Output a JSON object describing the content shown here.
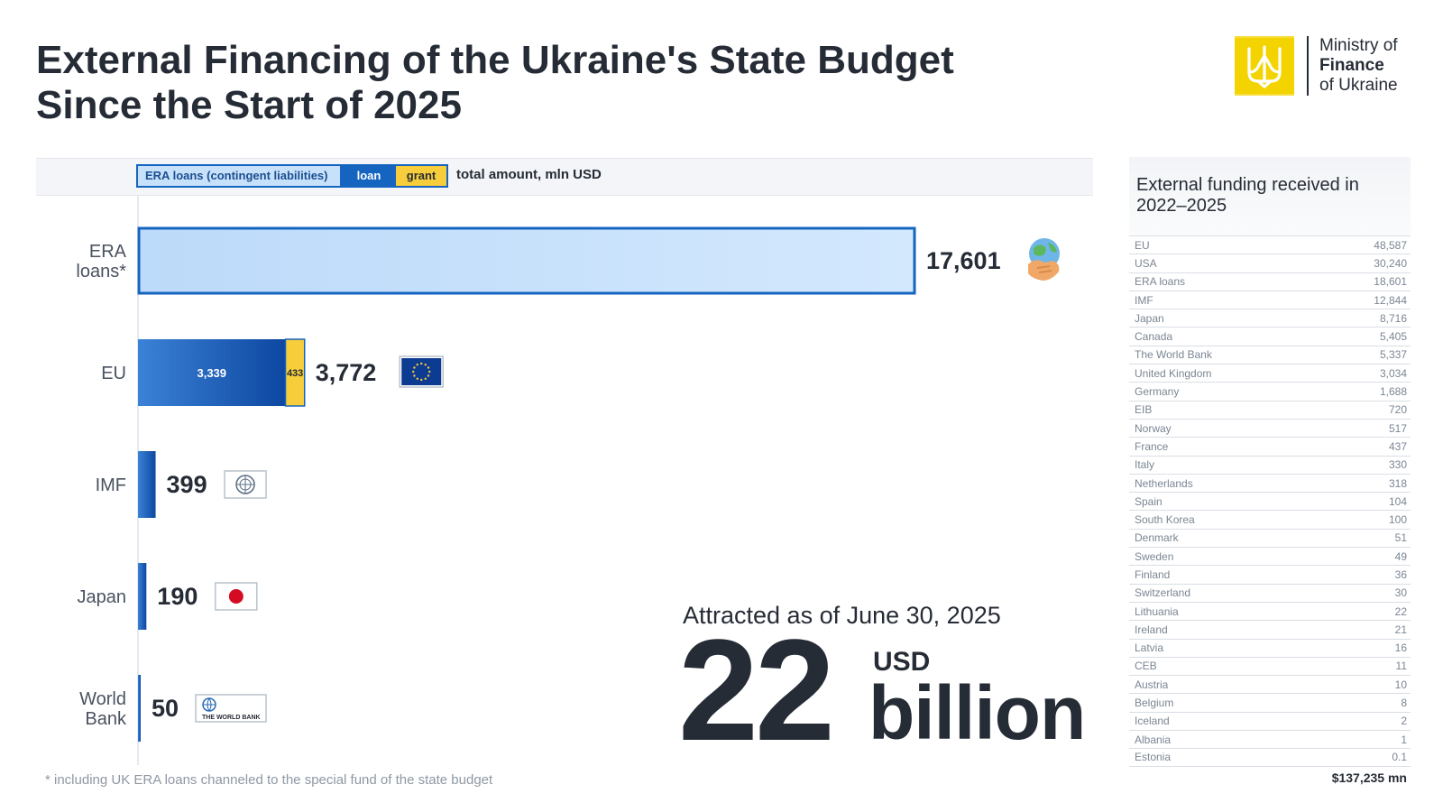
{
  "header": {
    "title_line1": "External Financing of the Ukraine's State Budget",
    "title_line2": "Since the Start of 2025"
  },
  "logo": {
    "line1": "Ministry of",
    "line2": "Finance",
    "line3": "of Ukraine",
    "icon": "trident-icon",
    "color": "#f4d400"
  },
  "legend": {
    "era": "ERA loans (contingent liabilities)",
    "loan": "loan",
    "grant": "grant",
    "total": "total amount, mln USD"
  },
  "colors": {
    "era_fill": "#c8e1fb",
    "loan": "#1565c0",
    "grant": "#f7cd3b",
    "text": "#262c36"
  },
  "chart_data": {
    "type": "bar",
    "orientation": "horizontal",
    "stacked": true,
    "unit": "mln USD",
    "xlim": [
      0,
      17601
    ],
    "categories": [
      "ERA loans*",
      "EU",
      "IMF",
      "Japan",
      "World Bank"
    ],
    "series": [
      {
        "name": "ERA loans (contingent liabilities)",
        "values": [
          17601,
          0,
          0,
          0,
          0
        ]
      },
      {
        "name": "loan",
        "values": [
          0,
          3339,
          399,
          190,
          50
        ]
      },
      {
        "name": "grant",
        "values": [
          0,
          433,
          0,
          0,
          0
        ]
      }
    ],
    "totals": [
      "17,601",
      "3,772",
      "399",
      "190",
      "50"
    ],
    "segment_labels": [
      "",
      "3,339",
      "",
      "",
      ""
    ],
    "grant_labels": [
      "",
      "433",
      "",
      "",
      ""
    ],
    "icons": [
      "handshake-globe-icon",
      "eu-flag-icon",
      "imf-logo-icon",
      "japan-flag-icon",
      "world-bank-logo-icon"
    ],
    "icon_texts": [
      "",
      "",
      "",
      "",
      "THE WORLD BANK"
    ]
  },
  "footnote": "* including UK ERA loans channeled to the special fund of the state budget",
  "summary": {
    "caption": "Attracted as of June 30, 2025",
    "value": "22",
    "currency": "USD",
    "unit": "billion"
  },
  "sidebar": {
    "title": "External funding received in 2022–2025",
    "rows": [
      {
        "name": "EU",
        "value": "48,587"
      },
      {
        "name": "USA",
        "value": "30,240"
      },
      {
        "name": "ERA loans",
        "value": "18,601"
      },
      {
        "name": "IMF",
        "value": "12,844"
      },
      {
        "name": "Japan",
        "value": "8,716"
      },
      {
        "name": "Canada",
        "value": "5,405"
      },
      {
        "name": "The World Bank",
        "value": "5,337"
      },
      {
        "name": "United Kingdom",
        "value": "3,034"
      },
      {
        "name": "Germany",
        "value": "1,688"
      },
      {
        "name": "EIB",
        "value": "720"
      },
      {
        "name": "Norway",
        "value": "517"
      },
      {
        "name": "France",
        "value": "437"
      },
      {
        "name": "Italy",
        "value": "330"
      },
      {
        "name": "Netherlands",
        "value": "318"
      },
      {
        "name": "Spain",
        "value": "104"
      },
      {
        "name": "South Korea",
        "value": "100"
      },
      {
        "name": "Denmark",
        "value": "51"
      },
      {
        "name": "Sweden",
        "value": "49"
      },
      {
        "name": "Finland",
        "value": "36"
      },
      {
        "name": "Switzerland",
        "value": "30"
      },
      {
        "name": "Lithuania",
        "value": "22"
      },
      {
        "name": "Ireland",
        "value": "21"
      },
      {
        "name": "Latvia",
        "value": "16"
      },
      {
        "name": "CEB",
        "value": "11"
      },
      {
        "name": "Austria",
        "value": "10"
      },
      {
        "name": "Belgium",
        "value": "8"
      },
      {
        "name": "Iceland",
        "value": "2"
      },
      {
        "name": "Albania",
        "value": "1"
      },
      {
        "name": "Estonia",
        "value": "0.1"
      }
    ],
    "total": "$137,235 mn"
  }
}
